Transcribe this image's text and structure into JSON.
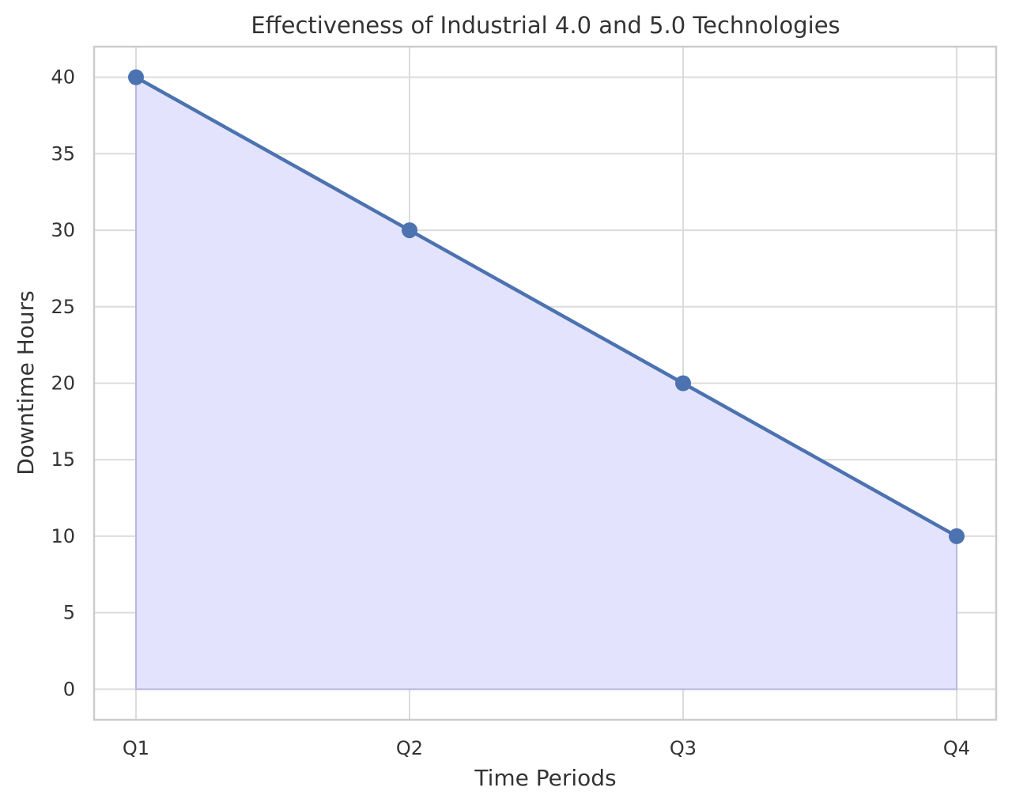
{
  "chart_data": {
    "type": "area",
    "title": "Effectiveness of Industrial 4.0 and 5.0 Technologies",
    "xlabel": "Time Periods",
    "ylabel": "Downtime Hours",
    "categories": [
      "Q1",
      "Q2",
      "Q3",
      "Q4"
    ],
    "series": [
      {
        "values": [
          40,
          30,
          20,
          10
        ]
      }
    ],
    "ylim": [
      -2,
      42
    ],
    "yticks": [
      0,
      5,
      10,
      15,
      20,
      25,
      30,
      35,
      40
    ],
    "grid": true,
    "colors": {
      "line": "#4c72b0",
      "fill": "#e3e3fd",
      "fill_edge": "#b8b8e0"
    }
  }
}
